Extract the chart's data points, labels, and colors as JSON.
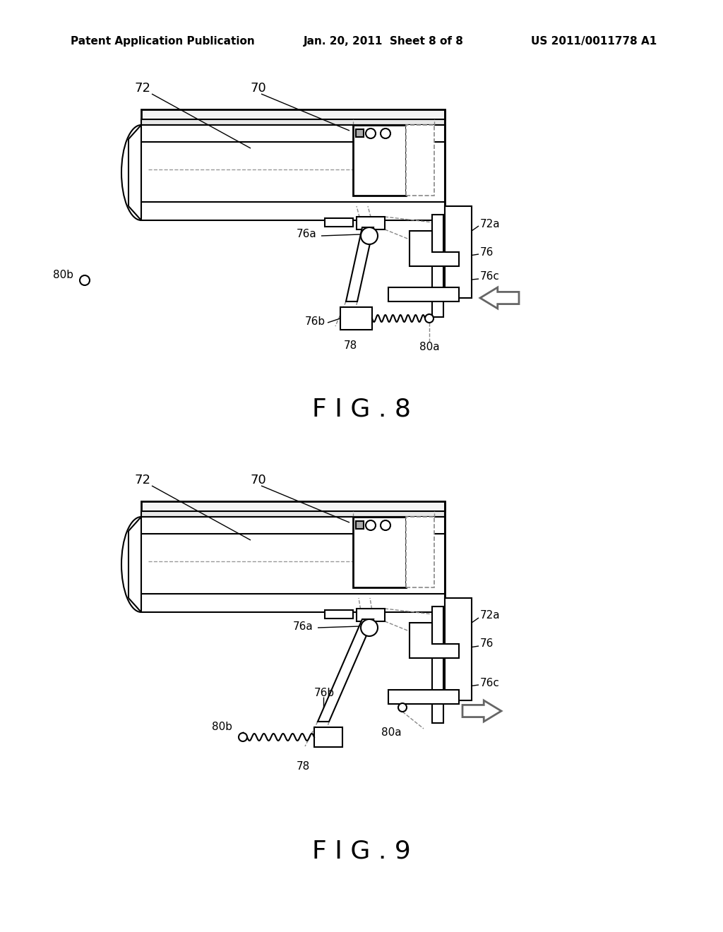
{
  "bg_color": "#ffffff",
  "header_left": "Patent Application Publication",
  "header_center": "Jan. 20, 2011  Sheet 8 of 8",
  "header_right": "US 2011/0011778 A1",
  "fig8_label": "F I G . 8",
  "fig9_label": "F I G . 9"
}
